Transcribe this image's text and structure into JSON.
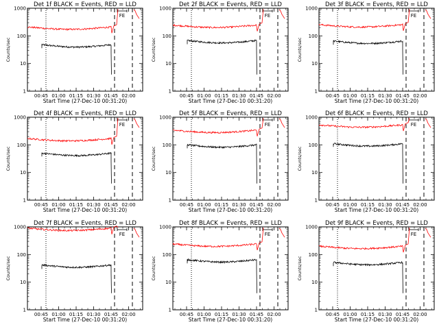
{
  "chart_data": [
    {
      "type": "line",
      "title": "Det 1f BLACK = Events, RED = LLD",
      "xlabel": "Start Time (27-Dec-10 00:31:20)",
      "ylabel": "Counts/sec",
      "ylim": [
        1,
        1000
      ],
      "yscale": "log",
      "xticks": [
        "00:45",
        "01:00",
        "01:15",
        "01:30",
        "01:45",
        "02:00"
      ],
      "yticks": [
        "1",
        "10",
        "100",
        "1000"
      ],
      "flag": "FE",
      "series": [
        {
          "name": "Events",
          "color": "#000000",
          "level": 48,
          "start": 36
        },
        {
          "name": "LLD",
          "color": "#ff0000",
          "level": 210
        }
      ]
    },
    {
      "type": "line",
      "title": "Det 2f BLACK = Events, RED = LLD",
      "xlabel": "Start Time (27-Dec-10 00:31:20)",
      "ylabel": "Counts/sec",
      "ylim": [
        1,
        1000
      ],
      "yscale": "log",
      "xticks": [
        "00:45",
        "01:00",
        "01:15",
        "01:30",
        "01:45",
        "02:00"
      ],
      "yticks": [
        "1",
        "10",
        "100",
        "1000"
      ],
      "flag": "FE",
      "series": [
        {
          "name": "Events",
          "color": "#000000",
          "level": 68,
          "start": 50
        },
        {
          "name": "LLD",
          "color": "#ff0000",
          "level": 245
        }
      ]
    },
    {
      "type": "line",
      "title": "Det 3f BLACK = Events, RED = LLD",
      "xlabel": "Start Time (27-Dec-10 00:31:20)",
      "ylabel": "Counts/sec",
      "ylim": [
        1,
        1000
      ],
      "yscale": "log",
      "xticks": [
        "00:45",
        "01:00",
        "01:15",
        "01:30",
        "01:45",
        "02:00"
      ],
      "yticks": [
        "1",
        "10",
        "100",
        "1000"
      ],
      "flag": "FE",
      "series": [
        {
          "name": "Events",
          "color": "#000000",
          "level": 65,
          "start": 48
        },
        {
          "name": "LLD",
          "color": "#ff0000",
          "level": 255
        }
      ]
    },
    {
      "type": "line",
      "title": "Det 4f BLACK = Events, RED = LLD",
      "xlabel": "Start Time (27-Dec-10 00:31:20)",
      "ylabel": "Counts/sec",
      "ylim": [
        1,
        1000
      ],
      "yscale": "log",
      "xticks": [
        "00:45",
        "01:00",
        "01:15",
        "01:30",
        "01:45",
        "02:00"
      ],
      "yticks": [
        "1",
        "10",
        "100",
        "1000"
      ],
      "flag": "FE",
      "series": [
        {
          "name": "Events",
          "color": "#000000",
          "level": 50,
          "start": 38
        },
        {
          "name": "LLD",
          "color": "#ff0000",
          "level": 170
        }
      ]
    },
    {
      "type": "line",
      "title": "Det 5f BLACK = Events, RED = LLD",
      "xlabel": "Start Time (27-Dec-10 00:31:20)",
      "ylabel": "Counts/sec",
      "ylim": [
        1,
        1000
      ],
      "yscale": "log",
      "xticks": [
        "00:45",
        "01:00",
        "01:15",
        "01:30",
        "01:45",
        "02:00"
      ],
      "yticks": [
        "1",
        "10",
        "100",
        "1000"
      ],
      "flag": "FE",
      "series": [
        {
          "name": "Events",
          "color": "#000000",
          "level": 100,
          "start": 75
        },
        {
          "name": "LLD",
          "color": "#ff0000",
          "level": 340
        }
      ]
    },
    {
      "type": "line",
      "title": "Det 6f BLACK = Events, RED = LLD",
      "xlabel": "Start Time (27-Dec-10 00:31:20)",
      "ylabel": "Counts/sec",
      "ylim": [
        1,
        1000
      ],
      "yscale": "log",
      "xticks": [
        "00:45",
        "01:00",
        "01:15",
        "01:30",
        "01:45",
        "02:00"
      ],
      "yticks": [
        "1",
        "10",
        "100",
        "1000"
      ],
      "flag": "FE",
      "series": [
        {
          "name": "Events",
          "color": "#000000",
          "level": 110,
          "start": 85
        },
        {
          "name": "LLD",
          "color": "#ff0000",
          "level": 530
        }
      ]
    },
    {
      "type": "line",
      "title": "Det 7f BLACK = Events, RED = LLD",
      "xlabel": "Start Time (27-Dec-10 00:31:20)",
      "ylabel": "Counts/sec",
      "ylim": [
        1,
        1000
      ],
      "yscale": "log",
      "xticks": [
        "00:45",
        "01:00",
        "01:15",
        "01:30",
        "01:45",
        "02:00"
      ],
      "yticks": [
        "1",
        "10",
        "100",
        "1000"
      ],
      "flag": "FE",
      "series": [
        {
          "name": "Events",
          "color": "#000000",
          "level": 42,
          "start": 30
        },
        {
          "name": "LLD",
          "color": "#ff0000",
          "level": 900
        }
      ]
    },
    {
      "type": "line",
      "title": "Det 8f BLACK = Events, RED = LLD",
      "xlabel": "Start Time (27-Dec-10 00:31:20)",
      "ylabel": "Counts/sec",
      "ylim": [
        1,
        1000
      ],
      "yscale": "log",
      "xticks": [
        "00:45",
        "01:00",
        "01:15",
        "01:30",
        "01:45",
        "02:00"
      ],
      "yticks": [
        "1",
        "10",
        "100",
        "1000"
      ],
      "flag": "FE",
      "series": [
        {
          "name": "Events",
          "color": "#000000",
          "level": 65,
          "start": 48
        },
        {
          "name": "LLD",
          "color": "#ff0000",
          "level": 240
        }
      ]
    },
    {
      "type": "line",
      "title": "Det 9f BLACK = Events, RED = LLD",
      "xlabel": "Start Time (27-Dec-10 00:31:20)",
      "ylabel": "Counts/sec",
      "ylim": [
        1,
        1000
      ],
      "yscale": "log",
      "xticks": [
        "00:45",
        "01:00",
        "01:15",
        "01:30",
        "01:45",
        "02:00"
      ],
      "yticks": [
        "1",
        "10",
        "100",
        "1000"
      ],
      "flag": "FE",
      "series": [
        {
          "name": "Events",
          "color": "#000000",
          "level": 52,
          "start": 38
        },
        {
          "name": "LLD",
          "color": "#ff0000",
          "level": 200
        }
      ]
    }
  ]
}
